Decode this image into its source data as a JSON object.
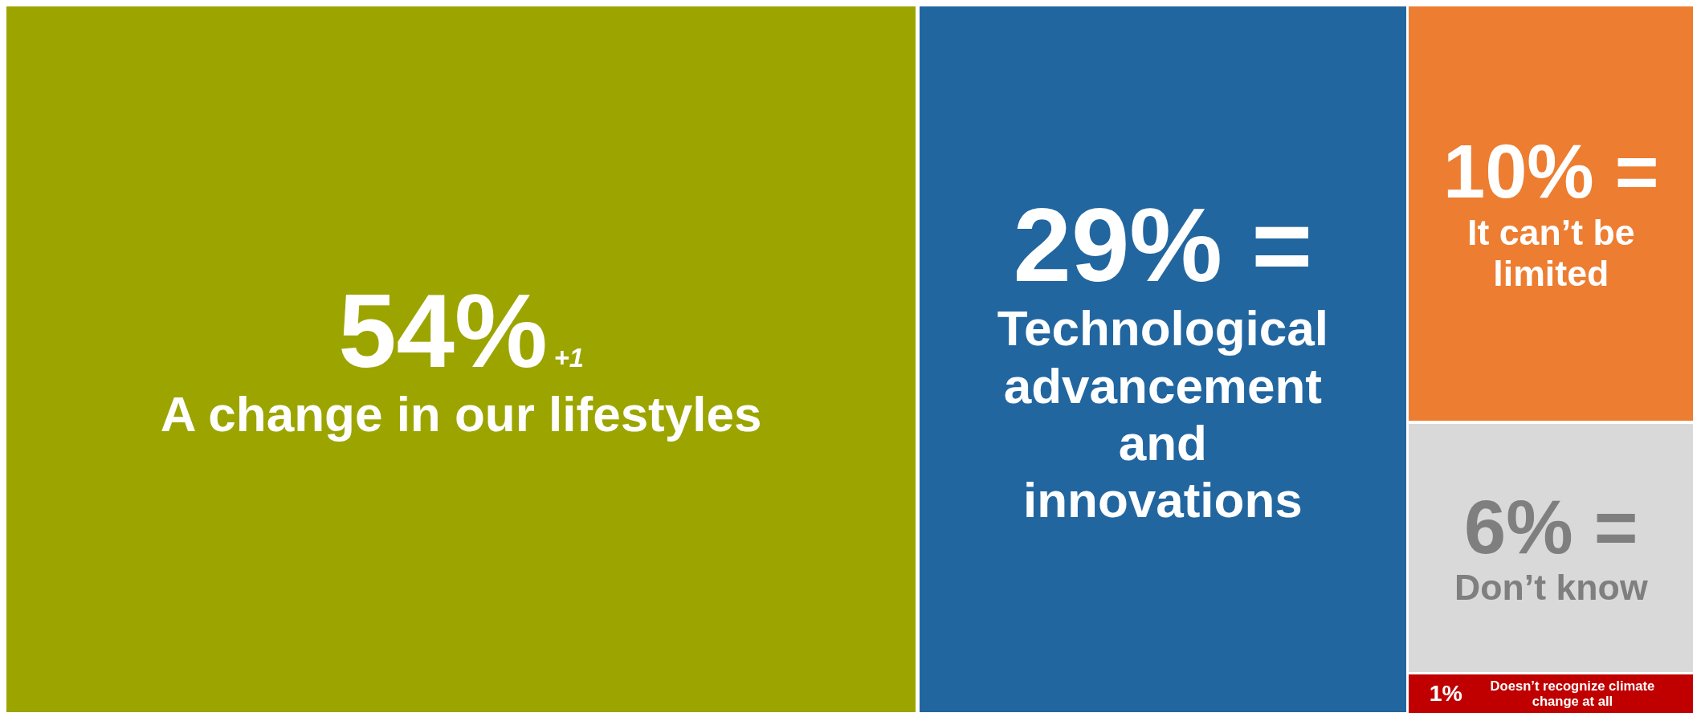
{
  "chart_data": {
    "type": "other",
    "categories": [
      "A change in our lifestyles",
      "Technological advancement and innovations",
      "It can’t be limited",
      "Don’t know",
      "Doesn’t recognize climate change at all"
    ],
    "values": [
      54,
      29,
      10,
      6,
      1
    ],
    "colors": [
      "#9ca500",
      "#2266a0",
      "#ed7d31",
      "#d9d9d9",
      "#c00000"
    ],
    "value_labels": [
      "54%",
      "29% =",
      "10% =",
      "6% =",
      "1%"
    ],
    "annotations": [
      {
        "text": "+1",
        "x": "A change in our lifestyles"
      }
    ]
  }
}
